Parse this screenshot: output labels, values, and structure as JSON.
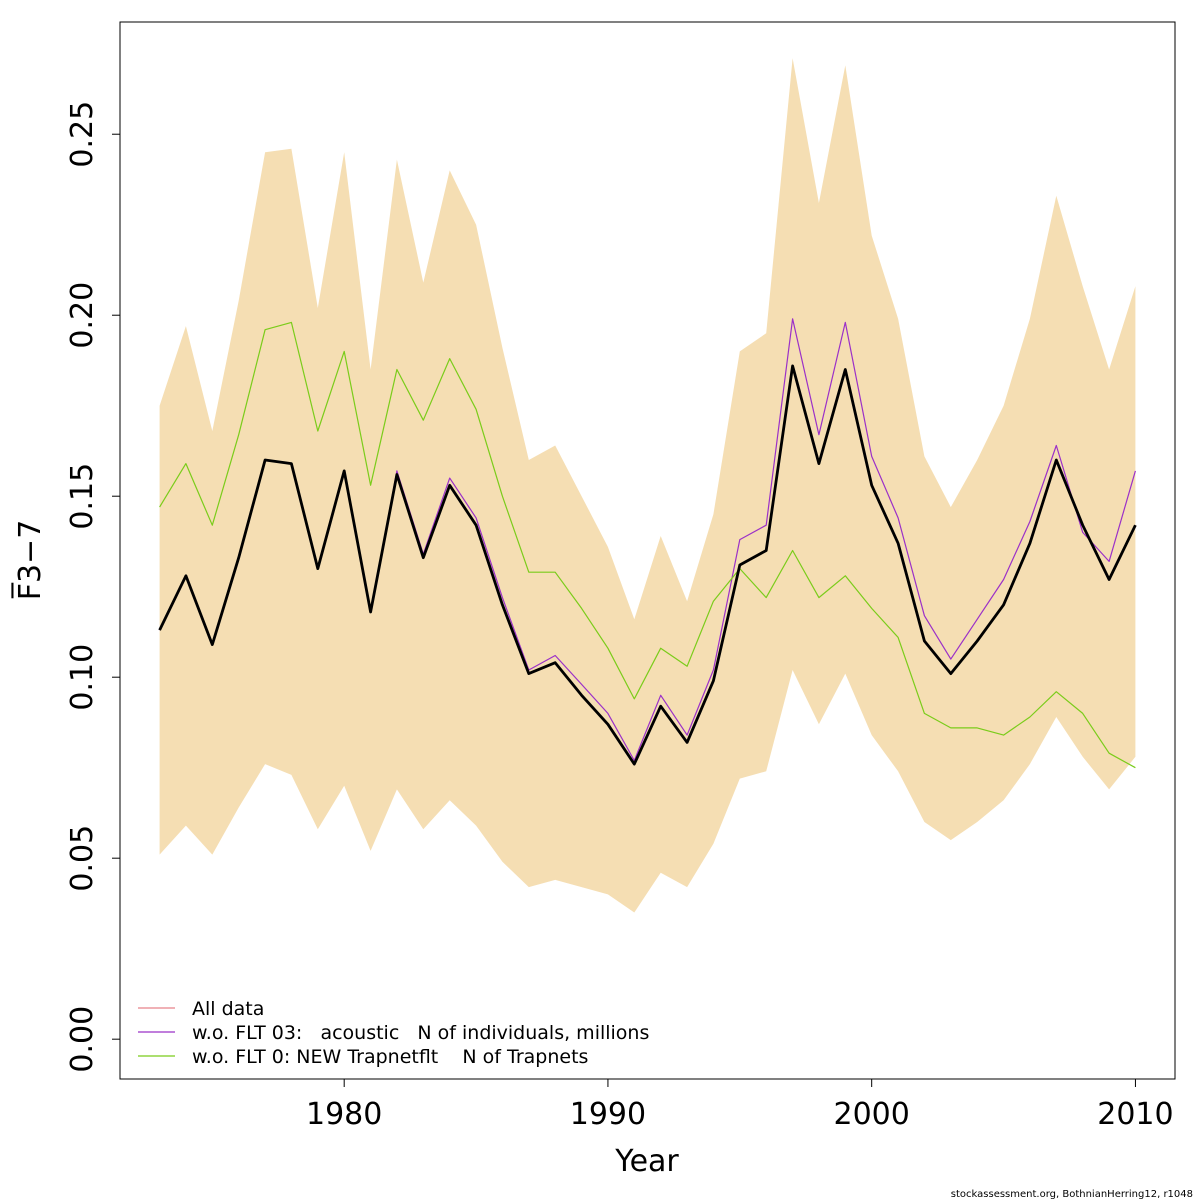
{
  "chart_data": {
    "type": "line",
    "xlabel": "Year",
    "ylabel": "F̅3−7",
    "xlim": [
      1971.5,
      2011.5
    ],
    "ylim": [
      -0.011,
      0.281
    ],
    "xticks": [
      1980,
      1990,
      2000,
      2010
    ],
    "xtick_labels": [
      "1980",
      "1990",
      "2000",
      "2010"
    ],
    "yticks": [
      0.0,
      0.05,
      0.1,
      0.15,
      0.2,
      0.25
    ],
    "ytick_labels": [
      "0.00",
      "0.05",
      "0.10",
      "0.15",
      "0.20",
      "0.25"
    ],
    "grid": false,
    "legend_position": "bottom-left",
    "x": [
      1973,
      1974,
      1975,
      1976,
      1977,
      1978,
      1979,
      1980,
      1981,
      1982,
      1983,
      1984,
      1985,
      1986,
      1987,
      1988,
      1989,
      1990,
      1991,
      1992,
      1993,
      1994,
      1995,
      1996,
      1997,
      1998,
      1999,
      2000,
      2001,
      2002,
      2003,
      2004,
      2005,
      2006,
      2007,
      2008,
      2009,
      2010
    ],
    "band": {
      "fill": "#f5deb3",
      "upper": [
        0.175,
        0.197,
        0.168,
        0.204,
        0.245,
        0.246,
        0.202,
        0.245,
        0.185,
        0.243,
        0.209,
        0.24,
        0.225,
        0.191,
        0.16,
        0.164,
        0.15,
        0.136,
        0.116,
        0.139,
        0.121,
        0.145,
        0.19,
        0.195,
        0.271,
        0.231,
        0.269,
        0.222,
        0.199,
        0.161,
        0.147,
        0.16,
        0.175,
        0.199,
        0.233,
        0.208,
        0.185,
        0.208
      ],
      "lower": [
        0.051,
        0.059,
        0.051,
        0.064,
        0.076,
        0.073,
        0.058,
        0.07,
        0.052,
        0.069,
        0.058,
        0.066,
        0.059,
        0.049,
        0.042,
        0.044,
        0.042,
        0.04,
        0.035,
        0.046,
        0.042,
        0.054,
        0.072,
        0.074,
        0.102,
        0.087,
        0.101,
        0.084,
        0.074,
        0.06,
        0.055,
        0.06,
        0.066,
        0.076,
        0.089,
        0.078,
        0.069,
        0.078
      ]
    },
    "main_series": {
      "color": "#000000",
      "values": [
        0.113,
        0.128,
        0.109,
        0.133,
        0.16,
        0.159,
        0.13,
        0.157,
        0.118,
        0.156,
        0.133,
        0.153,
        0.142,
        0.12,
        0.101,
        0.104,
        0.095,
        0.087,
        0.076,
        0.092,
        0.082,
        0.099,
        0.131,
        0.135,
        0.186,
        0.159,
        0.185,
        0.153,
        0.137,
        0.11,
        0.101,
        0.11,
        0.12,
        0.137,
        0.16,
        0.142,
        0.127,
        0.142
      ]
    },
    "series": [
      {
        "name": "All data",
        "color": "#e8828a",
        "values": [
          0.113,
          0.128,
          0.109,
          0.133,
          0.16,
          0.159,
          0.13,
          0.157,
          0.118,
          0.156,
          0.133,
          0.153,
          0.142,
          0.12,
          0.101,
          0.104,
          0.095,
          0.087,
          0.076,
          0.092,
          0.082,
          0.099,
          0.131,
          0.135,
          0.186,
          0.159,
          0.185,
          0.153,
          0.137,
          0.11,
          0.101,
          0.11,
          0.12,
          0.137,
          0.16,
          0.142,
          0.127,
          0.142
        ]
      },
      {
        "name": "w.o. FLT 03:   acoustic   N of individuals, millions",
        "color": "#9b30c8",
        "values": [
          0.113,
          0.128,
          0.109,
          0.133,
          0.16,
          0.159,
          0.13,
          0.157,
          0.118,
          0.157,
          0.134,
          0.155,
          0.144,
          0.122,
          0.102,
          0.106,
          0.098,
          0.09,
          0.077,
          0.095,
          0.084,
          0.102,
          0.138,
          0.142,
          0.199,
          0.167,
          0.198,
          0.161,
          0.144,
          0.117,
          0.105,
          0.116,
          0.127,
          0.143,
          0.164,
          0.14,
          0.132,
          0.157
        ]
      },
      {
        "name": "w.o. FLT 0: NEW Trapnetflt    N of Trapnets",
        "color": "#7acc1a",
        "values": [
          0.147,
          0.159,
          0.142,
          0.167,
          0.196,
          0.198,
          0.168,
          0.19,
          0.153,
          0.185,
          0.171,
          0.188,
          0.174,
          0.15,
          0.129,
          0.129,
          0.119,
          0.108,
          0.094,
          0.108,
          0.103,
          0.121,
          0.13,
          0.122,
          0.135,
          0.122,
          0.128,
          0.119,
          0.111,
          0.09,
          0.086,
          0.086,
          0.084,
          0.089,
          0.096,
          0.09,
          0.079,
          0.075
        ]
      }
    ]
  },
  "footer_text": "stockassessment.org, BothnianHerring12, r1048"
}
